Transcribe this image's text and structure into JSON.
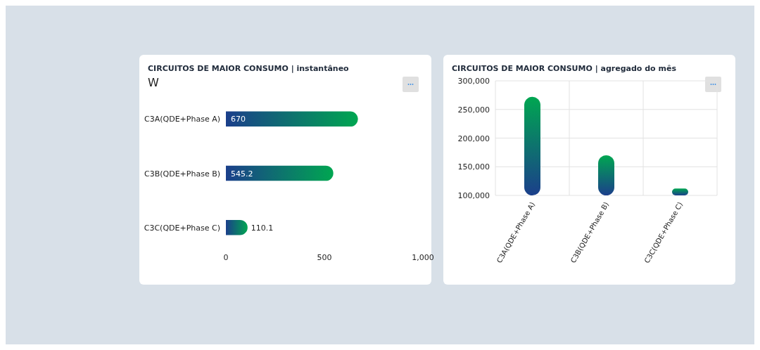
{
  "chart_data": [
    {
      "type": "bar",
      "title": "CIRCUITOS DE MAIOR CONSUMO | instantâneo",
      "annotations": [
        "W"
      ],
      "orientation": "horizontal",
      "categories": [
        "C3A(QDE+Phase A)",
        "C3B(QDE+Phase B)",
        "C3C(QDE+Phase C)"
      ],
      "values": [
        670,
        545.2,
        110.1
      ],
      "color": "#00a651",
      "xlim": [
        0,
        1000
      ],
      "xticks": [
        0,
        500,
        {
          "value": 1000,
          "label": "1,000"
        }
      ],
      "data_labels": true,
      "grid": false
    },
    {
      "type": "bar",
      "title": "CIRCUITOS DE MAIOR CONSUMO | agregado do mês",
      "categories": [
        "C3A(QDE+Phase A)",
        "C3B(QDE+Phase B)",
        "C3C(QDE+Phase C)"
      ],
      "values": [
        272000,
        170000,
        112000
      ],
      "color": "#00a651",
      "ylim": [
        100000,
        300000
      ],
      "yticks": [
        {
          "value": 100000,
          "label": "100,000"
        },
        {
          "value": 150000,
          "label": "150,000"
        },
        {
          "value": 200000,
          "label": "200,000"
        },
        {
          "value": 250000,
          "label": "250,000"
        },
        {
          "value": 300000,
          "label": "300,000"
        }
      ],
      "grid": true
    }
  ]
}
